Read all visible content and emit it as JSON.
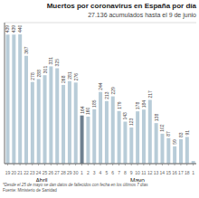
{
  "chart_data": {
    "type": "bar",
    "title": "Muertos por coronavirus en España por día",
    "subtitle": "27.136 acumulados hasta el 9 de junio",
    "footnote": "*Desde el 25 de mayo se dan datos de fallecidos con fecha en los últimos 7 días",
    "source": "Fuente: Ministerio de Sanidad",
    "categories": [
      "19",
      "20",
      "21",
      "22",
      "23",
      "24",
      "25",
      "26",
      "27",
      "28",
      "29",
      "30",
      "1",
      "2",
      "3",
      "4",
      "5",
      "6",
      "7",
      "8",
      "9",
      "10",
      "11",
      "12",
      "13",
      "14",
      "15",
      "16",
      "17",
      "18",
      "1"
    ],
    "values": [
      439,
      439,
      440,
      367,
      278,
      288,
      301,
      331,
      325,
      268,
      281,
      276,
      164,
      160,
      185,
      244,
      213,
      229,
      179,
      143,
      123,
      178,
      184,
      217,
      138,
      102,
      87,
      59,
      83,
      91,
      9
    ],
    "value_labels": [
      "439",
      "439",
      "440",
      "367",
      "278",
      "288",
      "301",
      "331",
      "325",
      "268",
      "281",
      "276",
      "164",
      "160",
      "185",
      "244",
      "213",
      "229",
      "179",
      "143",
      "123",
      "178",
      "184",
      "217",
      "138",
      "102",
      "87",
      "59",
      "83",
      "91",
      null
    ],
    "data_labels": true,
    "colors": [
      "#b8ccd8",
      "#b8ccd8",
      "#b8ccd8",
      "#b8ccd8",
      "#b8ccd8",
      "#b8ccd8",
      "#b8ccd8",
      "#b8ccd8",
      "#b8ccd8",
      "#b8ccd8",
      "#b8ccd8",
      "#b8ccd8",
      "#6e8090",
      "#b8ccd8",
      "#b8ccd8",
      "#b8ccd8",
      "#b8ccd8",
      "#b8ccd8",
      "#b8ccd8",
      "#b8ccd8",
      "#b8ccd8",
      "#b8ccd8",
      "#b8ccd8",
      "#b8ccd8",
      "#b8ccd8",
      "#b8ccd8",
      "#b8ccd8",
      "#b8ccd8",
      "#b8ccd8",
      "#b8ccd8",
      "#b8ccd8"
    ],
    "ylim": [
      0,
      480
    ],
    "yticks": [
      0,
      100,
      200,
      300,
      400
    ],
    "grid": true,
    "tick_labels": "x",
    "annotations": [
      {
        "text": "Abril",
        "span": [
          0,
          11
        ]
      },
      {
        "text": "Mayo",
        "span": [
          12,
          30
        ]
      }
    ]
  }
}
